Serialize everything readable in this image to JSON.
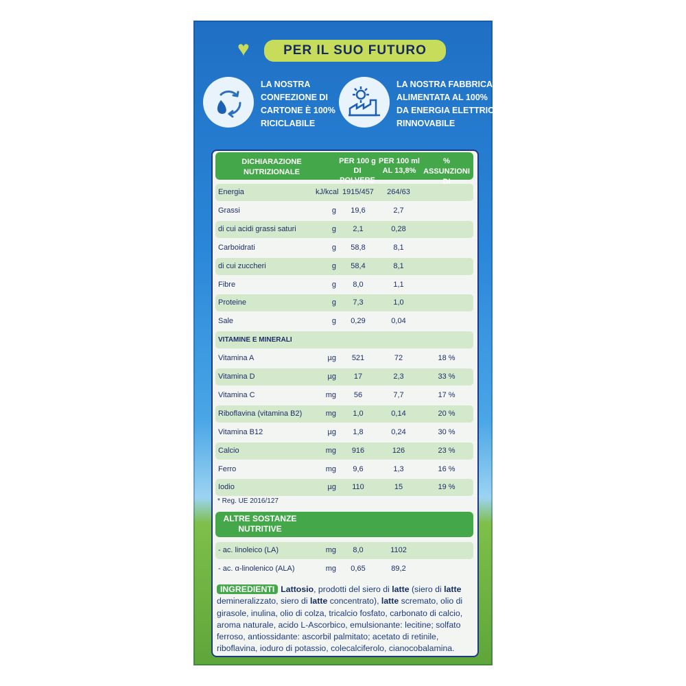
{
  "tagline": "PER IL SUO FUTURO",
  "icons": {
    "heart": "heart-icon",
    "recycle": "recycle-icon",
    "factory": "factory-sun-icon"
  },
  "claims": {
    "packaging": [
      "LA NOSTRA",
      "CONFEZIONE DI",
      "CARTONE È 100%",
      "RICICLABILE"
    ],
    "factory": [
      "LA NOSTRA FABBRICA È",
      "ALIMENTATA AL 100%",
      "DA ENERGIA ELETTRICA",
      "RINNOVABILE"
    ]
  },
  "colors": {
    "blue": "#2a86d8",
    "green": "#44a84a",
    "lime": "#c6dc5a",
    "navy": "#1c2d6a"
  },
  "table": {
    "title": [
      "DICHIARAZIONE",
      "NUTRIZIONALE"
    ],
    "col1": [
      "PER 100 g",
      "DI POLVERE"
    ],
    "col2": [
      "PER 100 ml",
      "AL 13,8%"
    ],
    "col3": [
      "% ASSUNZIONI",
      "DI RIFERIMENTO*"
    ],
    "rows": [
      {
        "name": "Energia",
        "unit": "kJ/kcal",
        "v1": "1915/457",
        "v2": "264/63",
        "v3": ""
      },
      {
        "name": "Grassi",
        "unit": "g",
        "v1": "19,6",
        "v2": "2,7",
        "v3": ""
      },
      {
        "name": "di cui acidi grassi saturi",
        "unit": "g",
        "v1": "2,1",
        "v2": "0,28",
        "v3": ""
      },
      {
        "name": "Carboidrati",
        "unit": "g",
        "v1": "58,8",
        "v2": "8,1",
        "v3": ""
      },
      {
        "name": "di cui zuccheri",
        "unit": "g",
        "v1": "58,4",
        "v2": "8,1",
        "v3": ""
      },
      {
        "name": "Fibre",
        "unit": "g",
        "v1": "8,0",
        "v2": "1,1",
        "v3": ""
      },
      {
        "name": "Proteine",
        "unit": "g",
        "v1": "7,3",
        "v2": "1,0",
        "v3": ""
      },
      {
        "name": "Sale",
        "unit": "g",
        "v1": "0,29",
        "v2": "0,04",
        "v3": ""
      },
      {
        "section": "VITAMINE E MINERALI"
      },
      {
        "name": "Vitamina A",
        "unit": "µg",
        "v1": "521",
        "v2": "72",
        "v3": "18 %"
      },
      {
        "name": "Vitamina D",
        "unit": "µg",
        "v1": "17",
        "v2": "2,3",
        "v3": "33 %"
      },
      {
        "name": "Vitamina C",
        "unit": "mg",
        "v1": "56",
        "v2": "7,7",
        "v3": "17 %"
      },
      {
        "name": "Riboflavina (vitamina B2)",
        "unit": "mg",
        "v1": "1,0",
        "v2": "0,14",
        "v3": "20 %"
      },
      {
        "name": "Vitamina B12",
        "unit": "µg",
        "v1": "1,8",
        "v2": "0,24",
        "v3": "30 %"
      },
      {
        "name": "Calcio",
        "unit": "mg",
        "v1": "916",
        "v2": "126",
        "v3": "23 %"
      },
      {
        "name": "Ferro",
        "unit": "mg",
        "v1": "9,6",
        "v2": "1,3",
        "v3": "16 %"
      },
      {
        "name": "Iodio",
        "unit": "µg",
        "v1": "110",
        "v2": "15",
        "v3": "19 %"
      }
    ],
    "note": "* Reg. UE 2016/127"
  },
  "other": {
    "title": [
      "ALTRE SOSTANZE",
      "NUTRITIVE"
    ],
    "rows": [
      {
        "name": "- ac. linoleico (LA)",
        "unit": "mg",
        "v1": "8,0",
        "v2": "1102",
        "v3": ""
      },
      {
        "name": "- ac. α-linolenico (ALA)",
        "unit": "mg",
        "v1": "0,65",
        "v2": "89,2",
        "v3": ""
      }
    ]
  },
  "ingredients": {
    "label": "INGREDIENTI",
    "parts": [
      {
        "b": "Lattosio"
      },
      {
        "t": ", prodotti del siero di "
      },
      {
        "b": "latte"
      },
      {
        "t": " (siero di "
      },
      {
        "b": "latte"
      },
      {
        "t": " demineralizzato, siero di "
      },
      {
        "b": "latte"
      },
      {
        "t": " concentrato), "
      },
      {
        "b": "latte"
      },
      {
        "t": " scremato, olio di girasole, inulina, olio di colza, tricalcio fosfato, carbonato di calcio, aroma naturale, acido L-Ascorbico, emulsionante: lecitine; solfato ferroso, antiossidante: ascorbil palmitato; acetato di retinile, riboflavina, ioduro di potassio, colecalciferolo, cianocobalamina."
      }
    ]
  }
}
